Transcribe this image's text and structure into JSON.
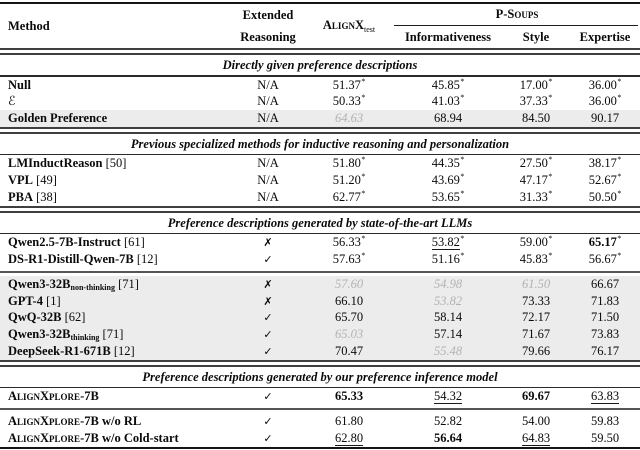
{
  "header": {
    "method": "Method",
    "extended_line1": "Extended",
    "extended_line2": "Reasoning",
    "alignx": "AlignX",
    "alignx_sub": "test",
    "psoups": "P-Soups",
    "psoups_columns": [
      "Informativeness",
      "Style",
      "Expertise"
    ]
  },
  "marks": {
    "na": "N/A",
    "check": "✓",
    "cross": "✗"
  },
  "colors": {
    "highlight_row": "#ececec",
    "gray_value": "#b2b2b2",
    "text": "#0a0a0a"
  },
  "chart_data": {
    "type": "table",
    "title": "",
    "columns": [
      "Method",
      "Extended Reasoning",
      "AlignX_test",
      "P-Soups Informativeness",
      "P-Soups Style",
      "P-Soups Expertise"
    ]
  },
  "sections": [
    {
      "title": "Directly given preference descriptions",
      "groups": [
        {
          "highlight": false,
          "rows": [
            {
              "method": {
                "text": "Null",
                "bold": true
              },
              "reasoning": "na",
              "values": [
                {
                  "v": "51.37",
                  "star": true,
                  "s": "plain"
                },
                {
                  "v": "45.85",
                  "star": true,
                  "s": "plain"
                },
                {
                  "v": "17.00",
                  "star": true,
                  "s": "plain"
                },
                {
                  "v": "36.00",
                  "star": true,
                  "s": "plain"
                }
              ]
            },
            {
              "method": {
                "text": "ℰ",
                "mathcal": true
              },
              "reasoning": "na",
              "values": [
                {
                  "v": "50.33",
                  "star": true,
                  "s": "plain"
                },
                {
                  "v": "41.03",
                  "star": true,
                  "s": "plain"
                },
                {
                  "v": "37.33",
                  "star": true,
                  "s": "plain"
                },
                {
                  "v": "36.00",
                  "star": true,
                  "s": "plain"
                }
              ]
            },
            {
              "method": {
                "text": "Golden Preference",
                "bold": true
              },
              "reasoning": "na",
              "highlight": true,
              "values": [
                {
                  "v": "64.63",
                  "s": "gray"
                },
                {
                  "v": "68.94",
                  "s": "plain"
                },
                {
                  "v": "84.50",
                  "s": "plain"
                },
                {
                  "v": "90.17",
                  "s": "plain"
                }
              ]
            }
          ]
        }
      ]
    },
    {
      "title": "Previous specialized methods for inductive reasoning and personalization",
      "groups": [
        {
          "highlight": false,
          "rows": [
            {
              "method": {
                "text": "LMInductReason",
                "bold": true,
                "cite": "[50]"
              },
              "reasoning": "na",
              "values": [
                {
                  "v": "51.80",
                  "star": true,
                  "s": "plain"
                },
                {
                  "v": "44.35",
                  "star": true,
                  "s": "plain"
                },
                {
                  "v": "27.50",
                  "star": true,
                  "s": "plain"
                },
                {
                  "v": "38.17",
                  "star": true,
                  "s": "plain"
                }
              ]
            },
            {
              "method": {
                "text": "VPL",
                "bold": true,
                "cite": "[49]"
              },
              "reasoning": "na",
              "values": [
                {
                  "v": "51.20",
                  "star": true,
                  "s": "plain"
                },
                {
                  "v": "43.69",
                  "star": true,
                  "s": "plain"
                },
                {
                  "v": "47.17",
                  "star": true,
                  "s": "plain"
                },
                {
                  "v": "52.67",
                  "star": true,
                  "s": "plain"
                }
              ]
            },
            {
              "method": {
                "text": "PBA",
                "bold": true,
                "cite": "[38]"
              },
              "reasoning": "na",
              "values": [
                {
                  "v": "62.77",
                  "star": true,
                  "s": "plain"
                },
                {
                  "v": "53.65",
                  "star": true,
                  "s": "plain"
                },
                {
                  "v": "31.33",
                  "star": true,
                  "s": "plain"
                },
                {
                  "v": "50.50",
                  "star": true,
                  "s": "plain"
                }
              ]
            }
          ]
        }
      ]
    },
    {
      "title": "Preference descriptions generated by state-of-the-art LLMs",
      "groups": [
        {
          "highlight": false,
          "rows": [
            {
              "method": {
                "text": "Qwen2.5-7B-Instruct",
                "bold": true,
                "cite": "[61]"
              },
              "reasoning": "cross",
              "values": [
                {
                  "v": "56.33",
                  "star": true,
                  "s": "plain"
                },
                {
                  "v": "53.82",
                  "star": true,
                  "s": "underline"
                },
                {
                  "v": "59.00",
                  "star": true,
                  "s": "plain"
                },
                {
                  "v": "65.17",
                  "star": true,
                  "s": "bold"
                }
              ]
            },
            {
              "method": {
                "text": "DS-R1-Distill-Qwen-7B",
                "bold": true,
                "cite": "[12]"
              },
              "reasoning": "check",
              "values": [
                {
                  "v": "57.63",
                  "star": true,
                  "s": "plain"
                },
                {
                  "v": "51.16",
                  "star": true,
                  "s": "plain"
                },
                {
                  "v": "45.83",
                  "star": true,
                  "s": "plain"
                },
                {
                  "v": "56.67",
                  "star": true,
                  "s": "plain"
                }
              ]
            }
          ]
        },
        {
          "highlight": true,
          "rows": [
            {
              "method": {
                "text": "Qwen3-32B",
                "bold": true,
                "sub": "non-thinking",
                "cite": "[71]"
              },
              "reasoning": "cross",
              "values": [
                {
                  "v": "57.60",
                  "s": "gray"
                },
                {
                  "v": "54.98",
                  "s": "gray"
                },
                {
                  "v": "61.50",
                  "s": "gray"
                },
                {
                  "v": "66.67",
                  "s": "plain"
                }
              ]
            },
            {
              "method": {
                "text": "GPT-4",
                "bold": true,
                "cite": "[1]"
              },
              "reasoning": "cross",
              "values": [
                {
                  "v": "66.10",
                  "s": "plain"
                },
                {
                  "v": "53.82",
                  "s": "gray"
                },
                {
                  "v": "73.33",
                  "s": "plain"
                },
                {
                  "v": "71.83",
                  "s": "plain"
                }
              ]
            },
            {
              "method": {
                "text": "QwQ-32B",
                "bold": true,
                "cite": "[62]"
              },
              "reasoning": "check",
              "values": [
                {
                  "v": "65.70",
                  "s": "plain"
                },
                {
                  "v": "58.14",
                  "s": "plain"
                },
                {
                  "v": "72.17",
                  "s": "plain"
                },
                {
                  "v": "71.50",
                  "s": "plain"
                }
              ]
            },
            {
              "method": {
                "text": "Qwen3-32B",
                "bold": true,
                "sub": "thinking",
                "cite": "[71]"
              },
              "reasoning": "check",
              "values": [
                {
                  "v": "65.03",
                  "s": "gray"
                },
                {
                  "v": "57.14",
                  "s": "plain"
                },
                {
                  "v": "71.67",
                  "s": "plain"
                },
                {
                  "v": "73.83",
                  "s": "plain"
                }
              ]
            },
            {
              "method": {
                "text": "DeepSeek-R1-671B",
                "bold": true,
                "cite": "[12]"
              },
              "reasoning": "check",
              "values": [
                {
                  "v": "70.47",
                  "s": "plain"
                },
                {
                  "v": "55.48",
                  "s": "gray"
                },
                {
                  "v": "79.66",
                  "s": "plain"
                },
                {
                  "v": "76.17",
                  "s": "plain"
                }
              ]
            }
          ]
        }
      ]
    },
    {
      "title": "Preference descriptions generated by our preference inference model",
      "groups": [
        {
          "highlight": false,
          "rows": [
            {
              "method": {
                "text": "AlignXplore-7B",
                "bold": true,
                "smallcaps": true
              },
              "reasoning": "check",
              "values": [
                {
                  "v": "65.33",
                  "s": "bold"
                },
                {
                  "v": "54.32",
                  "s": "underline"
                },
                {
                  "v": "69.67",
                  "s": "bold"
                },
                {
                  "v": "63.83",
                  "s": "underline"
                }
              ]
            }
          ]
        },
        {
          "highlight": false,
          "rows": [
            {
              "method": {
                "text": "AlignXplore-7B",
                "bold": true,
                "smallcaps": true,
                "suffix": " w/o RL"
              },
              "reasoning": "check",
              "values": [
                {
                  "v": "61.80",
                  "s": "plain"
                },
                {
                  "v": "52.82",
                  "s": "plain"
                },
                {
                  "v": "54.00",
                  "s": "plain"
                },
                {
                  "v": "59.83",
                  "s": "plain"
                }
              ]
            },
            {
              "method": {
                "text": "AlignXplore-7B",
                "bold": true,
                "smallcaps": true,
                "suffix": " w/o Cold-start"
              },
              "reasoning": "check",
              "values": [
                {
                  "v": "62.80",
                  "s": "underline"
                },
                {
                  "v": "56.64",
                  "s": "bold"
                },
                {
                  "v": "64.83",
                  "s": "underline"
                },
                {
                  "v": "59.50",
                  "s": "plain"
                }
              ]
            }
          ]
        }
      ]
    }
  ]
}
